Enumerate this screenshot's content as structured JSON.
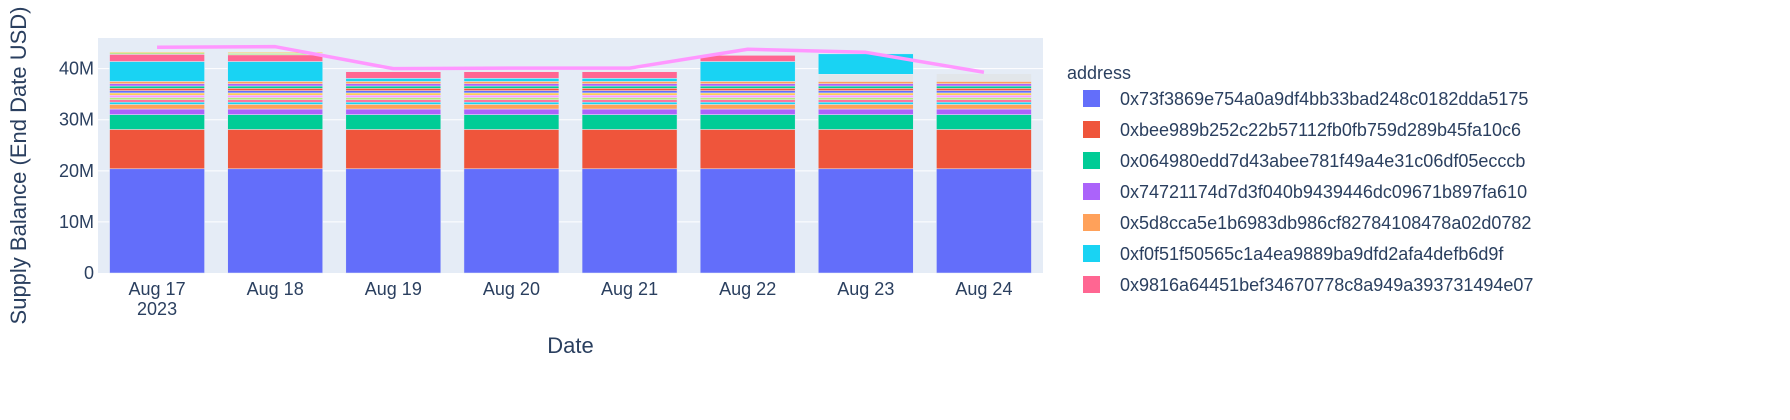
{
  "chart_data": {
    "type": "bar",
    "barmode": "stack",
    "xlabel": "Date",
    "ylabel": "Supply Balance (End Date USD)",
    "x_tick_labels": [
      "Aug 17",
      "Aug 18",
      "Aug 19",
      "Aug 20",
      "Aug 21",
      "Aug 22",
      "Aug 23",
      "Aug 24"
    ],
    "x_tick_year": "2023",
    "categories": [
      "2023-08-17",
      "2023-08-18",
      "2023-08-19",
      "2023-08-20",
      "2023-08-21",
      "2023-08-22",
      "2023-08-23",
      "2023-08-24"
    ],
    "ylim": [
      0,
      46000000
    ],
    "y_ticks": [
      0,
      10000000,
      20000000,
      30000000,
      40000000
    ],
    "y_tick_labels": [
      "0",
      "10M",
      "20M",
      "30M",
      "40M"
    ],
    "legend_title": "address",
    "legend_position": "right",
    "grid": true,
    "series": [
      {
        "name": "0x73f3869e754a0a9df4bb33bad248c0182dda5175",
        "color": "#636efa",
        "values": [
          20400000,
          20400000,
          20400000,
          20400000,
          20400000,
          20400000,
          20400000,
          20400000
        ]
      },
      {
        "name": "0xbee989b252c22b57112fb0fb759d289b45fa10c6",
        "color": "#EF553B",
        "values": [
          7700000,
          7700000,
          7700000,
          7700000,
          7700000,
          7700000,
          7700000,
          7700000
        ]
      },
      {
        "name": "0x064980edd7d43abee781f49a4e31c06df05ecccb",
        "color": "#00cc96",
        "values": [
          2900000,
          2900000,
          2900000,
          2900000,
          2900000,
          2900000,
          2900000,
          2900000
        ]
      },
      {
        "name": "0x74721174d7d3f040b9439446dc09671b897fa610",
        "color": "#ab63fa",
        "values": [
          1100000,
          1100000,
          1100000,
          1100000,
          1100000,
          1100000,
          1100000,
          1100000
        ]
      },
      {
        "name": "0x5d8cca5e1b6983db986cf82784108478a02d0782",
        "color": "#FFA15A",
        "values": [
          900000,
          900000,
          900000,
          900000,
          900000,
          900000,
          900000,
          900000
        ]
      }
    ],
    "minor_segments": {
      "colors": [
        "#19d3f3",
        "#FF6692",
        "#B6E880",
        "#FF97FF",
        "#FECB52",
        "#636efa",
        "#EF553B",
        "#00cc96",
        "#ab63fa",
        "#FFA15A"
      ],
      "values": [
        [
          450000,
          450000,
          450000,
          450000,
          450000,
          450000,
          450000,
          450000,
          450000,
          450000
        ],
        [
          450000,
          450000,
          450000,
          450000,
          450000,
          450000,
          450000,
          450000,
          450000,
          450000
        ],
        [
          450000,
          450000,
          450000,
          450000,
          450000,
          450000,
          450000,
          450000,
          450000,
          450000
        ],
        [
          450000,
          450000,
          450000,
          450000,
          450000,
          450000,
          450000,
          450000,
          450000,
          450000
        ],
        [
          450000,
          450000,
          450000,
          450000,
          450000,
          450000,
          450000,
          450000,
          450000,
          450000
        ],
        [
          450000,
          450000,
          450000,
          450000,
          450000,
          450000,
          450000,
          450000,
          450000,
          450000
        ],
        [
          450000,
          450000,
          450000,
          450000,
          450000,
          450000,
          450000,
          450000,
          450000,
          450000
        ],
        [
          450000,
          450000,
          450000,
          450000,
          450000,
          450000,
          450000,
          450000,
          450000,
          450000
        ]
      ]
    },
    "legend_only_series": [
      {
        "name": "0xf0f51f50565c1a4ea9889ba9dfd2afa4defb6d9f",
        "color": "#19d3f3"
      },
      {
        "name": "0x9816a64451bef34670778c8a949a393731494e07",
        "color": "#FF6692"
      }
    ],
    "top_segments": [
      [
        {
          "color": "#19d3f3",
          "value": 3900000
        },
        {
          "color": "#FF6692",
          "value": 1400000
        },
        {
          "color": "#B6E880",
          "value": 300000
        },
        {
          "color": "#FECB52",
          "value": 200000
        }
      ],
      [
        {
          "color": "#19d3f3",
          "value": 3900000
        },
        {
          "color": "#FF6692",
          "value": 1300000
        },
        {
          "color": "#B6E880",
          "value": 300000
        },
        {
          "color": "#FECB52",
          "value": 200000
        }
      ],
      [
        {
          "color": "#19d3f3",
          "value": 600000
        },
        {
          "color": "#FF6692",
          "value": 1300000
        }
      ],
      [
        {
          "color": "#19d3f3",
          "value": 600000
        },
        {
          "color": "#FF6692",
          "value": 1300000
        }
      ],
      [
        {
          "color": "#19d3f3",
          "value": 600000
        },
        {
          "color": "#FF6692",
          "value": 1300000
        }
      ],
      [
        {
          "color": "#19d3f3",
          "value": 3900000
        },
        {
          "color": "#FF6692",
          "value": 1200000
        }
      ],
      [
        {
          "color": "#e2e6ea",
          "value": 1400000
        },
        {
          "color": "#19d3f3",
          "value": 4000000
        }
      ],
      [
        {
          "color": "#e2e6ea",
          "value": 1500000
        }
      ]
    ],
    "line": {
      "color": "#FF97FF",
      "values": [
        44200000,
        44300000,
        40000000,
        40100000,
        40100000,
        43800000,
        43200000,
        39300000
      ]
    }
  }
}
